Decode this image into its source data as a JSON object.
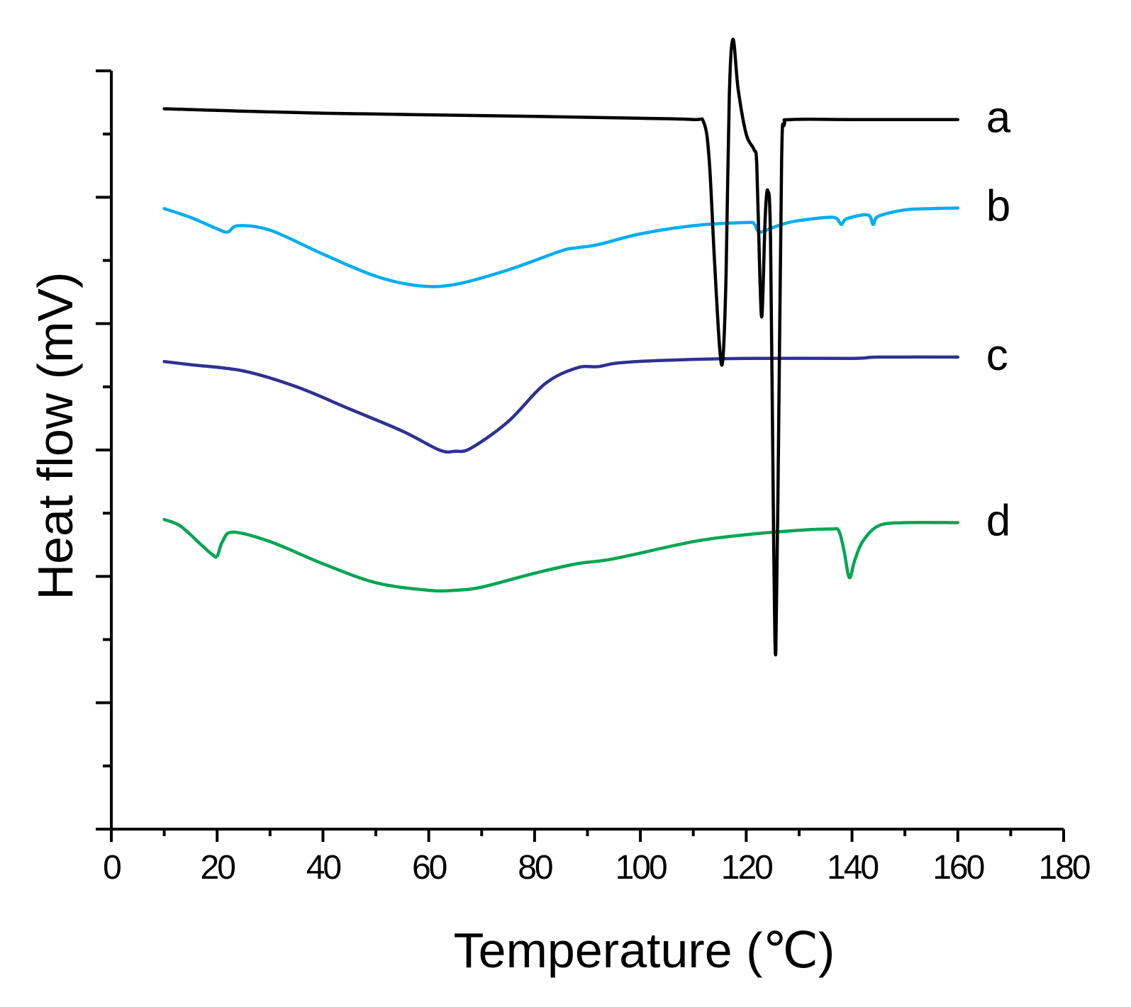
{
  "chart_data": {
    "type": "line",
    "xlabel": "Temperature (℃)",
    "ylabel": "Heat flow (mV)",
    "xlim": [
      0,
      180
    ],
    "ylim": [
      0,
      12
    ],
    "x_ticks": [
      0,
      20,
      40,
      60,
      80,
      100,
      120,
      140,
      160,
      180
    ],
    "x_minor_step": 10,
    "y_major_step": 2,
    "y_minor_step": 1,
    "show_y_tick_labels": false,
    "grid": false,
    "series": [
      {
        "name": "a",
        "label": "a",
        "color": "#000000",
        "points": [
          [
            10,
            11.4
          ],
          [
            40,
            11.33
          ],
          [
            80,
            11.28
          ],
          [
            100,
            11.25
          ],
          [
            110,
            11.23
          ],
          [
            112,
            11.18
          ],
          [
            113,
            10.6
          ],
          [
            114,
            9.0
          ],
          [
            115,
            7.6
          ],
          [
            115.6,
            7.45
          ],
          [
            116.2,
            8.8
          ],
          [
            116.8,
            11.6
          ],
          [
            117.5,
            12.5
          ],
          [
            118.5,
            11.7
          ],
          [
            120,
            11.0
          ],
          [
            121.5,
            10.75
          ],
          [
            122,
            10.5
          ],
          [
            122.6,
            8.7
          ],
          [
            123,
            8.15
          ],
          [
            123.6,
            9.7
          ],
          [
            124.1,
            10.1
          ],
          [
            124.6,
            9.3
          ],
          [
            125.2,
            4.5
          ],
          [
            125.6,
            2.8
          ],
          [
            126.1,
            6.0
          ],
          [
            126.7,
            10.6
          ],
          [
            127.2,
            11.15
          ],
          [
            128.5,
            11.23
          ],
          [
            140,
            11.23
          ],
          [
            160,
            11.23
          ]
        ]
      },
      {
        "name": "b",
        "label": "b",
        "color": "#00aeef",
        "points": [
          [
            10,
            9.82
          ],
          [
            15,
            9.68
          ],
          [
            20,
            9.5
          ],
          [
            22,
            9.45
          ],
          [
            24,
            9.55
          ],
          [
            30,
            9.48
          ],
          [
            40,
            9.1
          ],
          [
            50,
            8.75
          ],
          [
            58,
            8.6
          ],
          [
            65,
            8.62
          ],
          [
            75,
            8.85
          ],
          [
            85,
            9.15
          ],
          [
            88,
            9.2
          ],
          [
            92,
            9.25
          ],
          [
            100,
            9.42
          ],
          [
            110,
            9.55
          ],
          [
            120,
            9.6
          ],
          [
            121.5,
            9.58
          ],
          [
            122.5,
            9.45
          ],
          [
            125,
            9.52
          ],
          [
            128,
            9.6
          ],
          [
            130,
            9.63
          ],
          [
            135,
            9.68
          ],
          [
            137,
            9.67
          ],
          [
            138,
            9.57
          ],
          [
            139,
            9.66
          ],
          [
            143,
            9.72
          ],
          [
            144,
            9.57
          ],
          [
            145,
            9.7
          ],
          [
            150,
            9.8
          ],
          [
            155,
            9.82
          ],
          [
            160,
            9.83
          ]
        ]
      },
      {
        "name": "c",
        "label": "c",
        "color": "#2e3192",
        "points": [
          [
            10,
            7.4
          ],
          [
            15,
            7.35
          ],
          [
            25,
            7.25
          ],
          [
            35,
            7.0
          ],
          [
            45,
            6.65
          ],
          [
            55,
            6.3
          ],
          [
            62,
            6.0
          ],
          [
            65,
            5.98
          ],
          [
            68,
            6.03
          ],
          [
            75,
            6.45
          ],
          [
            82,
            7.05
          ],
          [
            88,
            7.3
          ],
          [
            92,
            7.32
          ],
          [
            96,
            7.38
          ],
          [
            105,
            7.42
          ],
          [
            120,
            7.45
          ],
          [
            140,
            7.45
          ],
          [
            145,
            7.47
          ],
          [
            160,
            7.47
          ]
        ]
      },
      {
        "name": "d",
        "label": "d",
        "color": "#00a651",
        "points": [
          [
            10,
            4.9
          ],
          [
            13,
            4.8
          ],
          [
            17,
            4.5
          ],
          [
            19,
            4.35
          ],
          [
            20,
            4.32
          ],
          [
            21,
            4.55
          ],
          [
            23,
            4.7
          ],
          [
            30,
            4.55
          ],
          [
            40,
            4.2
          ],
          [
            50,
            3.9
          ],
          [
            60,
            3.78
          ],
          [
            65,
            3.78
          ],
          [
            70,
            3.83
          ],
          [
            80,
            4.05
          ],
          [
            88,
            4.2
          ],
          [
            95,
            4.28
          ],
          [
            110,
            4.55
          ],
          [
            120,
            4.66
          ],
          [
            130,
            4.73
          ],
          [
            136,
            4.75
          ],
          [
            137.5,
            4.72
          ],
          [
            138.5,
            4.4
          ],
          [
            139.5,
            3.98
          ],
          [
            140.5,
            4.25
          ],
          [
            142,
            4.55
          ],
          [
            145,
            4.8
          ],
          [
            150,
            4.85
          ],
          [
            160,
            4.85
          ]
        ]
      }
    ]
  }
}
